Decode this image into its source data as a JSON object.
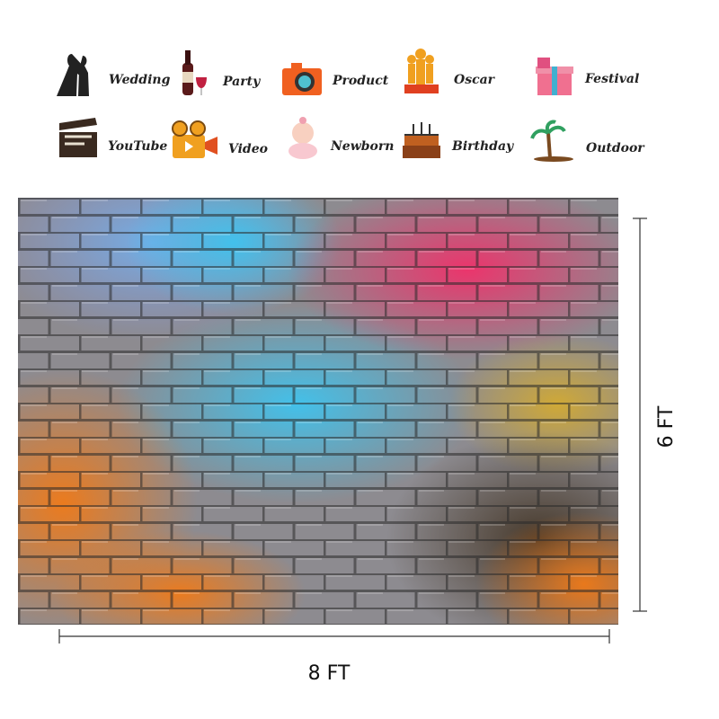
{
  "uses": [
    "Wedding",
    "Party",
    "Product",
    "Oscar",
    "Festival",
    "YouTube",
    "Video",
    "Newborn",
    "Birthday",
    "Outdoor"
  ],
  "dimensions": {
    "width": "8 FT",
    "height": "6 FT"
  }
}
